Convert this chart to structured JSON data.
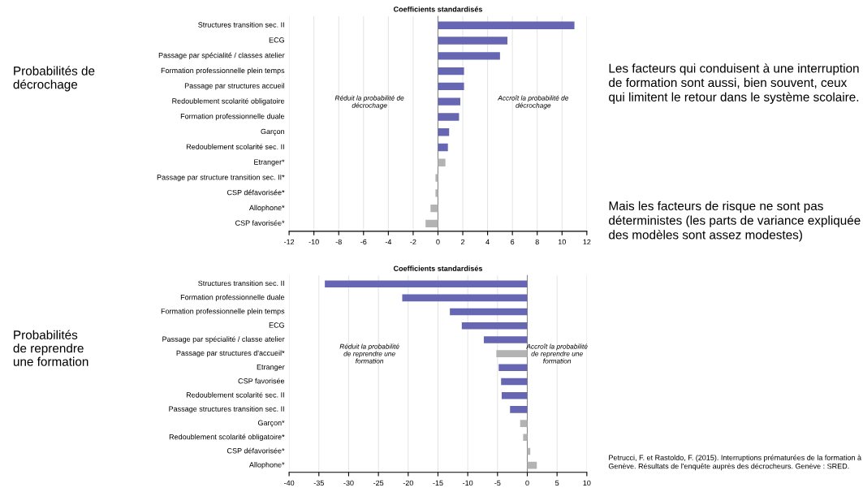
{
  "chart_data": [
    {
      "type": "bar",
      "orientation": "horizontal",
      "title": "Coefficients standardisés",
      "subtitle": "Probabilités de\ndécrochage",
      "categories": [
        "Structures transition sec. II",
        "ECG",
        "Passage par spécialité / classes atelier",
        "Formation professionnelle plein temps",
        "Passage par structures accueil",
        "Redoublement scolarité obligatoire",
        "Formation professionnelle duale",
        "Garçon",
        "Redoublement scolarité sec. II",
        "Etranger*",
        "Passage par structure transition sec. II*",
        "CSP défavorisée*",
        "Allophone*",
        "CSP favorisée*"
      ],
      "values": [
        11,
        5.6,
        5,
        2.1,
        2.1,
        1.8,
        1.7,
        0.9,
        0.8,
        0.6,
        -0.2,
        -0.2,
        -0.6,
        -1.0
      ],
      "colors": [
        "#6666b3",
        "#6666b3",
        "#6666b3",
        "#6666b3",
        "#6666b3",
        "#6666b3",
        "#6666b3",
        "#6666b3",
        "#6666b3",
        "#b3b3b3",
        "#b3b3b3",
        "#b3b3b3",
        "#b3b3b3",
        "#b3b3b3"
      ],
      "xlim": [
        -12,
        12
      ],
      "xticks": [
        -12,
        -10,
        -8,
        -6,
        -4,
        -2,
        0,
        2,
        4,
        6,
        8,
        10,
        12
      ],
      "grid": "x",
      "annotations": [
        "Réduit la probabilité de\ndécrochage",
        "Accroît la probabilité de\ndécrochage"
      ]
    },
    {
      "type": "bar",
      "orientation": "horizontal",
      "title": "Coefficients standardisés",
      "subtitle": "Probabilités\nde reprendre\nune formation",
      "categories": [
        "Structures transition sec. II",
        "Formation professionnelle duale",
        "Formation professionnelle plein temps",
        "ECG",
        "Passage par spécialité / classe atelier",
        "Passage par structures d'accueil*",
        "Etranger",
        "CSP favorisée",
        "Redoublement scolarité sec. II",
        "Passage structures transition sec. II",
        "Garçon*",
        "Redoublement scolarité obligatoire*",
        "CSP défavorisée*",
        "Allophone*"
      ],
      "values": [
        -34,
        -21,
        -13,
        -11,
        -7.3,
        -5.2,
        -4.8,
        -4.4,
        -4.3,
        -2.9,
        -1.2,
        -0.7,
        0.5,
        1.6
      ],
      "colors": [
        "#6666b3",
        "#6666b3",
        "#6666b3",
        "#6666b3",
        "#6666b3",
        "#b3b3b3",
        "#6666b3",
        "#6666b3",
        "#6666b3",
        "#6666b3",
        "#b3b3b3",
        "#b3b3b3",
        "#b3b3b3",
        "#b3b3b3"
      ],
      "xlim": [
        -40,
        10
      ],
      "xticks": [
        -40,
        -35,
        -30,
        -25,
        -20,
        -15,
        -10,
        -5,
        0,
        5,
        10
      ],
      "grid": "x",
      "annotations": [
        "Réduit la probabilité\nde reprendre une\nformation",
        "Accroît la probabilité\nde reprendre une\nformation"
      ]
    },
    {
      "type": "other",
      "annotations": [
        "Les facteurs qui conduisent à une interruption de formation sont aussi, bien souvent, ceux qui limitent le retour dans le système scolaire.",
        "Mais les facteurs de risque ne sont pas déterministes (les parts de variance expliquée des modèles sont assez modestes)",
        "Petrucci, F. et Rastoldo, F. (2015). Interruptions prématurées de la formation à Genève. Résultats de l'enquête auprès des décrocheurs. Genève : SRED."
      ]
    }
  ]
}
